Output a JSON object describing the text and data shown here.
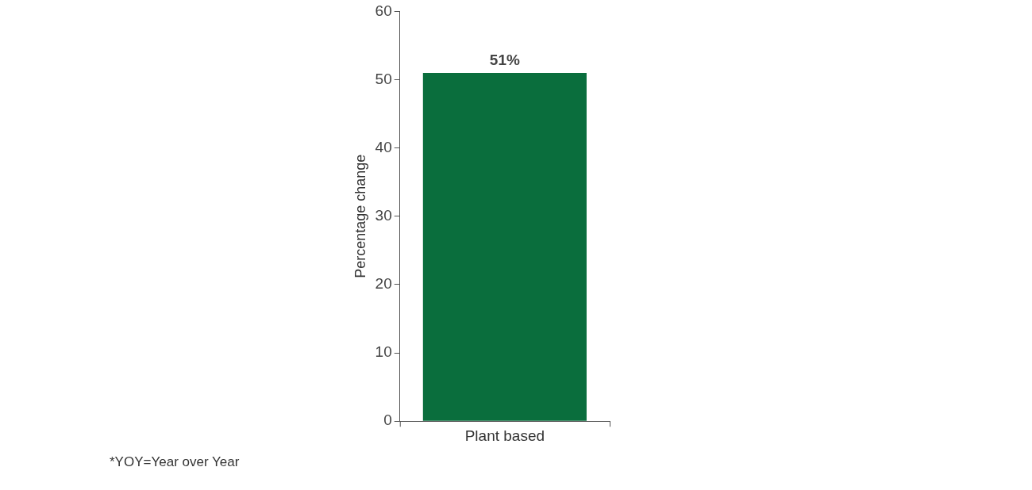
{
  "chart_data": {
    "type": "bar",
    "ylabel": "Percentage change",
    "categories": [
      "Plant based"
    ],
    "values": [
      51
    ],
    "value_labels": [
      "51%"
    ],
    "color": "#0a6e3d",
    "ylim": [
      0,
      60
    ],
    "yticks": [
      0,
      10,
      20,
      30,
      40,
      50,
      60
    ],
    "grid": false,
    "legend": false,
    "annotations": [
      "*YOY=Year over Year"
    ]
  }
}
